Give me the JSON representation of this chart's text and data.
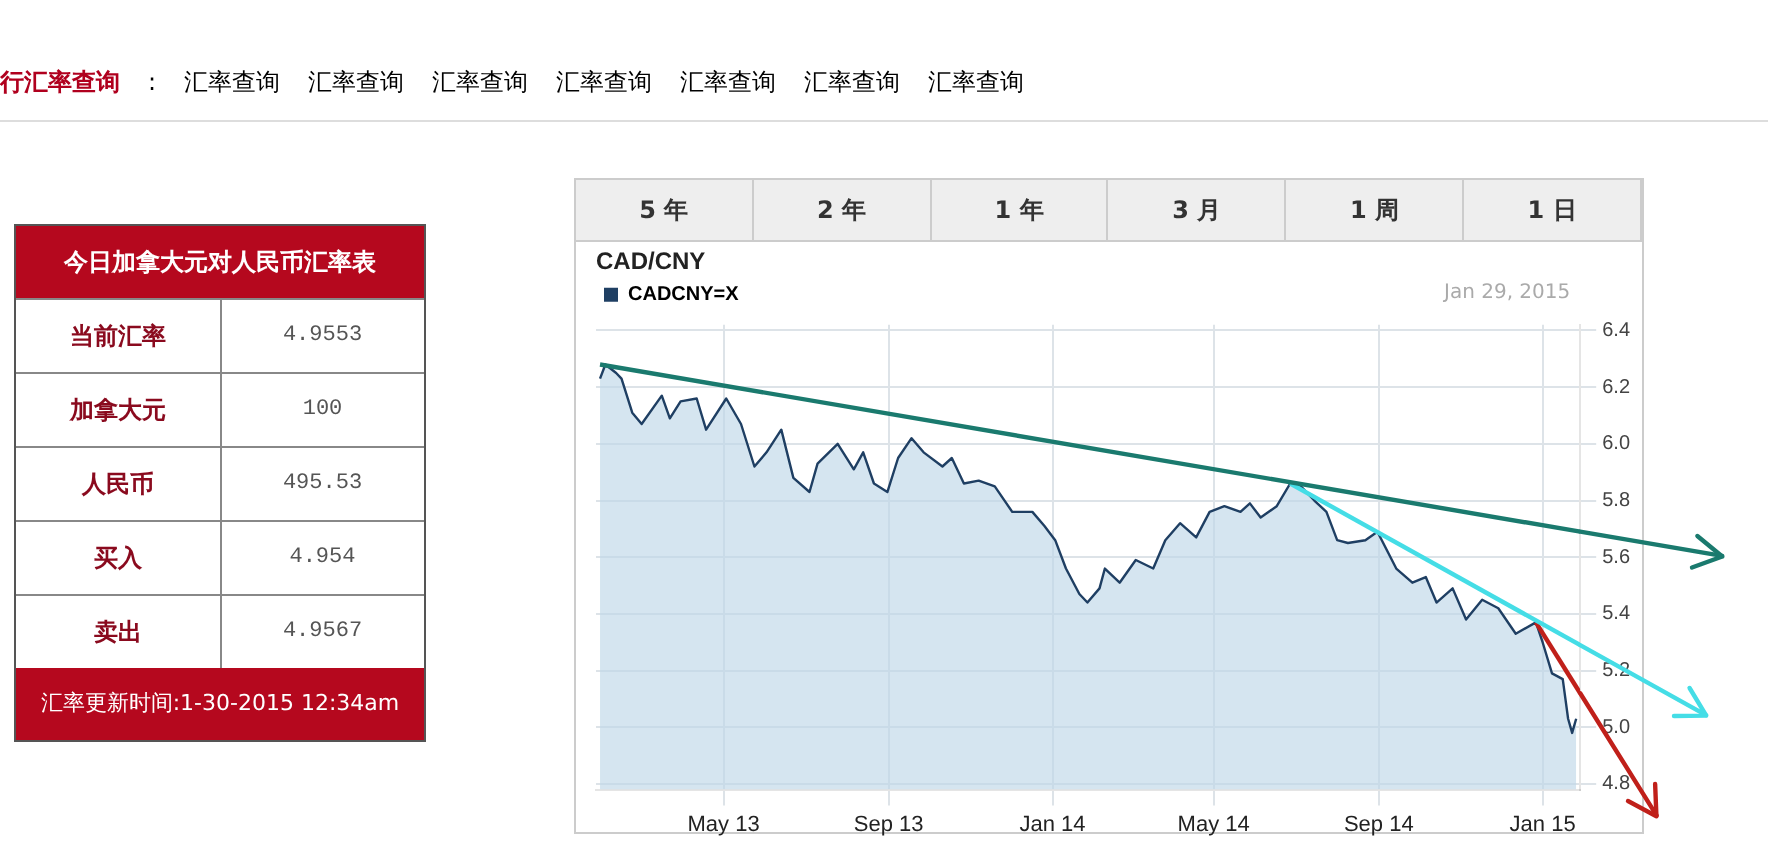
{
  "chart_data": [
    {
      "type": "other",
      "title": "今日加拿大元对人民币汇率表",
      "annotations": [
        "行汇率查询",
        ":",
        "汇率查询",
        "汇率查询",
        "汇率查询",
        "汇率查询",
        "汇率查询",
        "汇率查询",
        "汇率查询",
        "当前汇率",
        "4.9553",
        "加拿大元",
        "100",
        "人民币",
        "495.53",
        "买入",
        "4.954",
        "卖出",
        "4.9567",
        "汇率更新时间:1-30-2015 12:34am"
      ]
    },
    {
      "type": "area",
      "title": "CAD/CNY",
      "legend": "top left",
      "grid": true,
      "annotations": [
        "5 年",
        "2 年",
        "1 年",
        "3 月",
        "1 周",
        "1 日",
        "Jan 29, 2015"
      ],
      "xlim": [
        "2013-01-26",
        "2015-01-29"
      ],
      "xticks": [
        {
          "value": "2013-05-01",
          "label": "May 13"
        },
        {
          "value": "2013-09-01",
          "label": "Sep 13"
        },
        {
          "value": "2014-01-01",
          "label": "Jan 14"
        },
        {
          "value": "2014-05-01",
          "label": "May 14"
        },
        {
          "value": "2014-09-01",
          "label": "Sep 14"
        },
        {
          "value": "2015-01-01",
          "label": "Jan 15"
        }
      ],
      "ylim": [
        4.78,
        6.42
      ],
      "yticks": [
        4.8,
        {
          "value": 5,
          "label": "5.0"
        },
        5.2,
        5.4,
        5.6,
        5.8,
        {
          "value": 6,
          "label": "6.0"
        },
        6.2,
        6.4
      ],
      "series": [
        {
          "name": "CADCNY=X",
          "color": "#1f3f63",
          "x": [
            "2013-01-29",
            "2013-02-02",
            "2013-02-10",
            "2013-02-14",
            "2013-02-22",
            "2013-03-01",
            "2013-03-16",
            "2013-03-22",
            "2013-03-30",
            "2013-04-11",
            "2013-04-18",
            "2013-05-03",
            "2013-05-14",
            "2013-05-24",
            "2013-06-02",
            "2013-06-13",
            "2013-06-22",
            "2013-07-04",
            "2013-07-10",
            "2013-07-25",
            "2013-08-06",
            "2013-08-13",
            "2013-08-21",
            "2013-08-31",
            "2013-09-08",
            "2013-09-18",
            "2013-09-27",
            "2013-10-11",
            "2013-10-18",
            "2013-10-27",
            "2013-11-07",
            "2013-11-19",
            "2013-12-02",
            "2013-12-17",
            "2013-12-26",
            "2014-01-03",
            "2014-01-11",
            "2014-01-21",
            "2014-01-27",
            "2014-02-05",
            "2014-02-09",
            "2014-02-20",
            "2014-03-04",
            "2014-03-17",
            "2014-03-26",
            "2014-04-06",
            "2014-04-18",
            "2014-04-28",
            "2014-05-09",
            "2014-05-21",
            "2014-05-28",
            "2014-06-05",
            "2014-06-17",
            "2014-06-27",
            "2014-07-05",
            "2014-07-15",
            "2014-07-24",
            "2014-08-01",
            "2014-08-09",
            "2014-08-22",
            "2014-08-31",
            "2014-09-14",
            "2014-09-26",
            "2014-10-06",
            "2014-10-14",
            "2014-10-26",
            "2014-11-05",
            "2014-11-17",
            "2014-11-29",
            "2014-12-12",
            "2014-12-27",
            "2015-01-01",
            "2015-01-08",
            "2015-01-16",
            "2015-01-20",
            "2015-01-23",
            "2015-01-26"
          ],
          "values": [
            6.23,
            6.28,
            6.25,
            6.23,
            6.11,
            6.07,
            6.17,
            6.09,
            6.15,
            6.16,
            6.05,
            6.16,
            6.07,
            5.92,
            5.97,
            6.05,
            5.88,
            5.83,
            5.93,
            6.0,
            5.91,
            5.97,
            5.86,
            5.83,
            5.95,
            6.02,
            5.97,
            5.92,
            5.95,
            5.86,
            5.87,
            5.85,
            5.76,
            5.76,
            5.71,
            5.66,
            5.56,
            5.47,
            5.44,
            5.49,
            5.56,
            5.51,
            5.59,
            5.56,
            5.66,
            5.72,
            5.67,
            5.76,
            5.78,
            5.76,
            5.79,
            5.74,
            5.78,
            5.86,
            5.85,
            5.8,
            5.76,
            5.66,
            5.65,
            5.66,
            5.69,
            5.56,
            5.51,
            5.53,
            5.44,
            5.49,
            5.38,
            5.45,
            5.42,
            5.33,
            5.37,
            5.3,
            5.19,
            5.17,
            5.03,
            4.98,
            5.03
          ]
        },
        {
          "type": "line",
          "color": "#1a7a6e",
          "x": [
            "2013-01-29",
            "2015-01-29"
          ],
          "values": [
            6.28,
            5.69
          ]
        },
        {
          "type": "line",
          "color": "#45dde6",
          "x": [
            "2014-06-27",
            "2015-01-29"
          ],
          "values": [
            5.86,
            5.29
          ]
        },
        {
          "type": "line",
          "color": "#c0201a",
          "x": [
            "2014-12-27",
            "2015-01-29"
          ],
          "values": [
            5.37,
            5.12
          ]
        }
      ]
    }
  ]
}
